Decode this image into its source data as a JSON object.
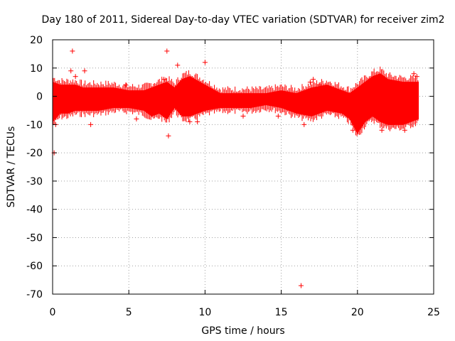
{
  "chart_data": {
    "type": "scatter",
    "title": "Day 180 of 2011, Sidereal Day-to-day VTEC variation (SDTVAR) for receiver zim2",
    "xlabel": "GPS time / hours",
    "ylabel": "SDTVAR / TECUs",
    "xlim": [
      0,
      25
    ],
    "ylim": [
      -70,
      20
    ],
    "xticks": [
      0,
      5,
      10,
      15,
      20,
      25
    ],
    "yticks": [
      -70,
      -60,
      -50,
      -40,
      -30,
      -20,
      -10,
      0,
      10,
      20
    ],
    "grid": true,
    "marker": "+",
    "color": "#ff0000",
    "band": {
      "description": "Dense cloud of points, approximate upper/lower envelope per hour",
      "x": [
        0.0,
        0.5,
        1.0,
        1.5,
        2.0,
        3.0,
        4.0,
        5.0,
        6.0,
        6.5,
        7.0,
        7.5,
        8.0,
        8.5,
        9.0,
        10.0,
        11.0,
        12.0,
        13.0,
        14.0,
        15.0,
        16.0,
        17.0,
        18.0,
        19.0,
        19.5,
        20.0,
        20.5,
        21.0,
        21.5,
        22.0,
        23.0,
        24.0
      ],
      "upper": [
        5,
        4,
        4,
        4,
        3,
        3,
        3,
        2,
        2,
        3,
        4,
        5,
        3,
        6,
        7,
        4,
        1,
        1,
        1,
        1,
        2,
        1,
        3,
        4,
        2,
        1,
        3,
        5,
        7,
        8,
        6,
        5,
        5
      ],
      "lower": [
        -9,
        -6,
        -6,
        -5,
        -5,
        -5,
        -4,
        -4,
        -5,
        -7,
        -6,
        -8,
        -4,
        -7,
        -7,
        -5,
        -4,
        -4,
        -4,
        -3,
        -4,
        -6,
        -7,
        -5,
        -6,
        -8,
        -13,
        -9,
        -7,
        -9,
        -10,
        -10,
        -8
      ]
    },
    "outliers": {
      "x": [
        0.1,
        0.2,
        1.3,
        1.2,
        1.5,
        2.1,
        2.5,
        4.8,
        5.5,
        7.3,
        7.5,
        7.6,
        8.2,
        9.0,
        9.5,
        10.0,
        12.5,
        14.8,
        16.3,
        16.5,
        16.9,
        17.1,
        17.5,
        19.7,
        21.6,
        22.3,
        23.1,
        23.7,
        23.9
      ],
      "y": [
        -20,
        -10,
        16,
        9,
        7,
        9,
        -10,
        4,
        -8,
        6,
        16,
        -14,
        11,
        -9,
        -9,
        12,
        -7,
        -7,
        -67,
        -10,
        5,
        6,
        4,
        -12,
        -12,
        -10,
        -12,
        8,
        7
      ]
    }
  }
}
